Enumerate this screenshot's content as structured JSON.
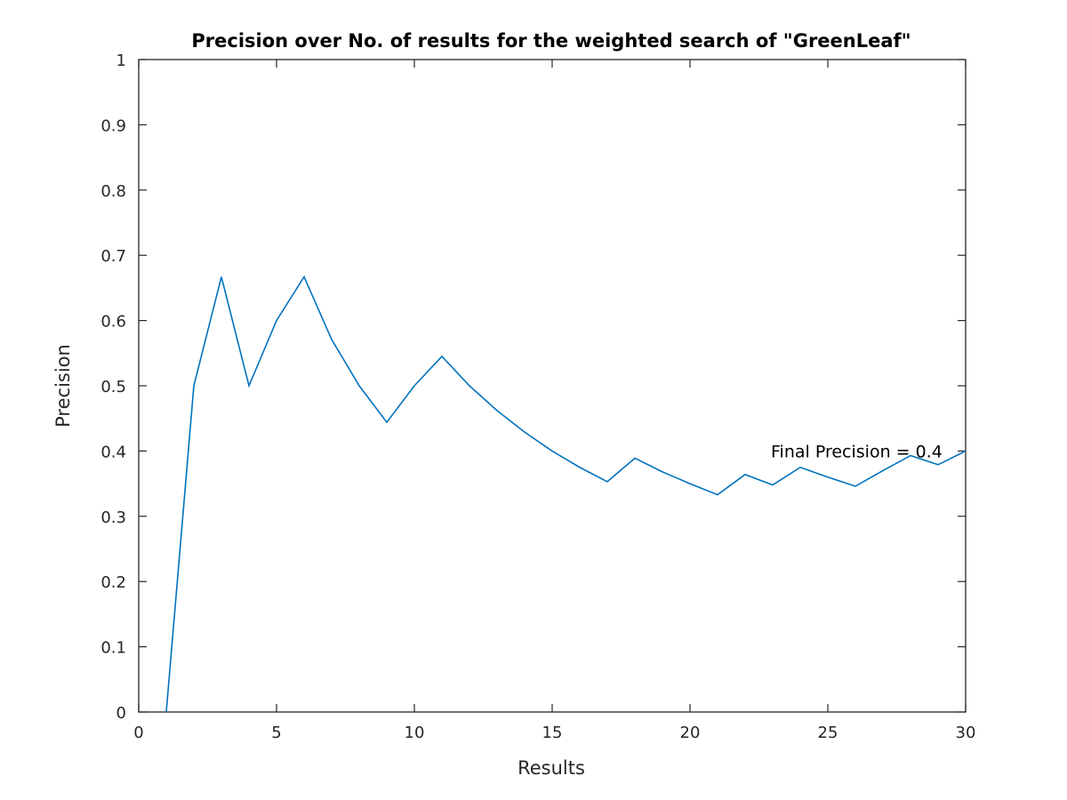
{
  "colors": {
    "line": "#0072BD",
    "axis": "#262626",
    "background": "#ffffff"
  },
  "chart_data": {
    "type": "line",
    "title": "Precision over No. of results for the weighted search of \"GreenLeaf\"",
    "xlabel": "Results",
    "ylabel": "Precision",
    "xlim": [
      0,
      30
    ],
    "ylim": [
      0,
      1
    ],
    "xticks": [
      0,
      5,
      10,
      15,
      20,
      25,
      30
    ],
    "xtick_labels": [
      "0",
      "5",
      "10",
      "15",
      "20",
      "25",
      "30"
    ],
    "yticks": [
      0,
      0.1,
      0.2,
      0.3,
      0.4,
      0.5,
      0.6,
      0.7,
      0.8,
      0.9,
      1
    ],
    "ytick_labels": [
      "0",
      "0.1",
      "0.2",
      "0.3",
      "0.4",
      "0.5",
      "0.6",
      "0.7",
      "0.8",
      "0.9",
      "1"
    ],
    "grid": false,
    "box": true,
    "series": [
      {
        "x": [
          1,
          2,
          3,
          4,
          5,
          6,
          7,
          8,
          9,
          10,
          11,
          12,
          13,
          14,
          15,
          16,
          17,
          18,
          19,
          20,
          21,
          22,
          23,
          24,
          25,
          26,
          27,
          28,
          29,
          30
        ],
        "values": [
          0,
          0.5,
          0.667,
          0.5,
          0.6,
          0.667,
          0.571,
          0.5,
          0.444,
          0.5,
          0.545,
          0.5,
          0.462,
          0.429,
          0.4,
          0.375,
          0.353,
          0.389,
          0.368,
          0.35,
          0.333,
          0.364,
          0.348,
          0.375,
          0.36,
          0.346,
          0.37,
          0.393,
          0.379,
          0.4
        ]
      }
    ],
    "annotations": [
      {
        "text": "Final Precision = 0.4",
        "x": 23,
        "y": 0.4
      }
    ]
  }
}
